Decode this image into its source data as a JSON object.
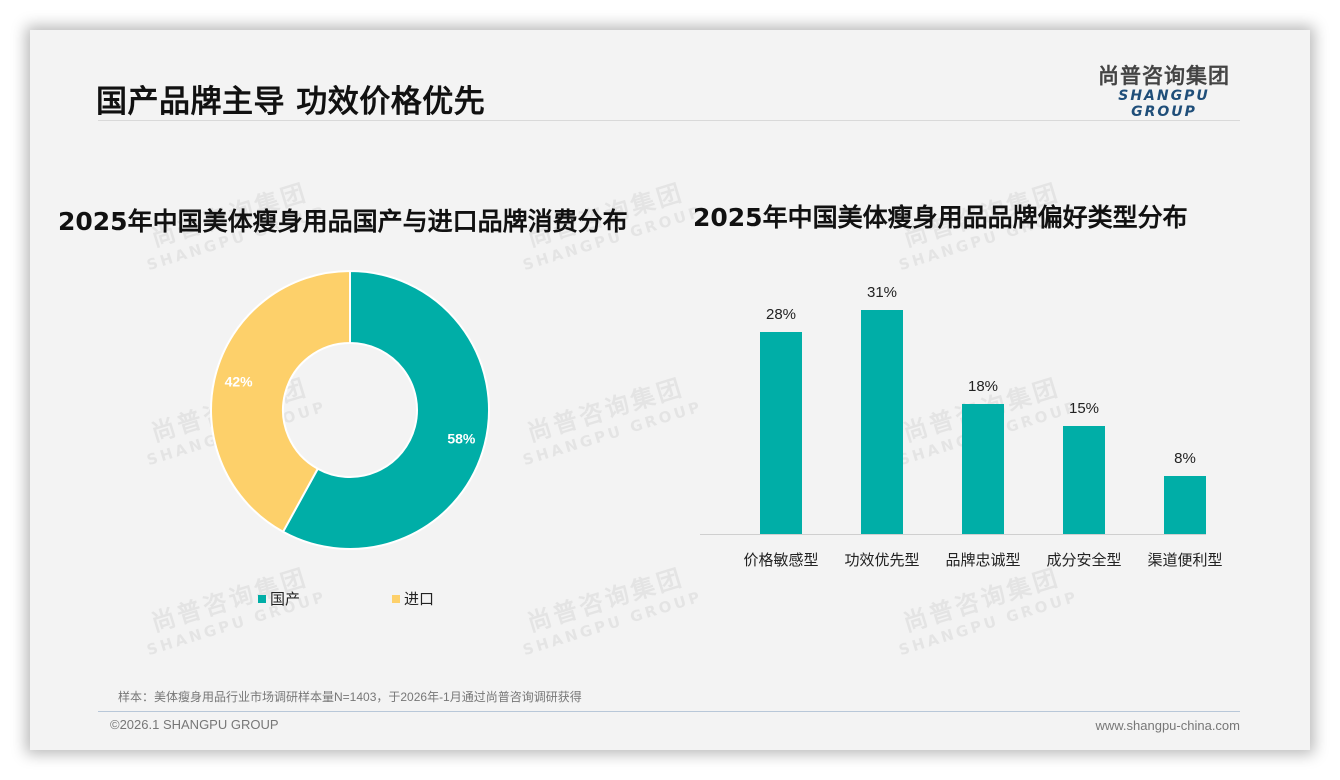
{
  "page": {
    "title": "国产品牌主导 功效价格优先",
    "logo": {
      "cn": "尚普咨询集团",
      "en": "SHANGPU GROUP"
    },
    "watermark": {
      "cn": "尚普咨询集团",
      "en": "SHANGPU GROUP"
    },
    "sample_note": "样本：美体瘦身用品行业市场调研样本量N=1403，于2026年-1月通过尚普咨询调研获得",
    "footer_copyright": "©2026.1 SHANGPU GROUP",
    "footer_url": "www.shangpu-china.com"
  },
  "colors": {
    "teal": "#00aea7",
    "yellow": "#fdd06a",
    "logo_blue": "#1f4e79"
  },
  "chart_data": [
    {
      "type": "pie",
      "subtype": "donut",
      "title": "2025年中国美体瘦身用品国产与进口品牌消费分布",
      "categories": [
        "国产",
        "进口"
      ],
      "values": [
        58,
        42
      ],
      "labels": [
        "58%",
        "42%"
      ],
      "colors": [
        "#00aea7",
        "#fdd06a"
      ],
      "legend_position": "bottom"
    },
    {
      "type": "bar",
      "title": "2025年中国美体瘦身用品品牌偏好类型分布",
      "categories": [
        "价格敏感型",
        "功效优先型",
        "品牌忠诚型",
        "成分安全型",
        "渠道便利型"
      ],
      "values": [
        28,
        31,
        18,
        15,
        8
      ],
      "labels": [
        "28%",
        "31%",
        "18%",
        "15%",
        "8%"
      ],
      "unit": "%",
      "xlabel": "",
      "ylabel": "",
      "grid": false,
      "color": "#00aea7"
    }
  ]
}
